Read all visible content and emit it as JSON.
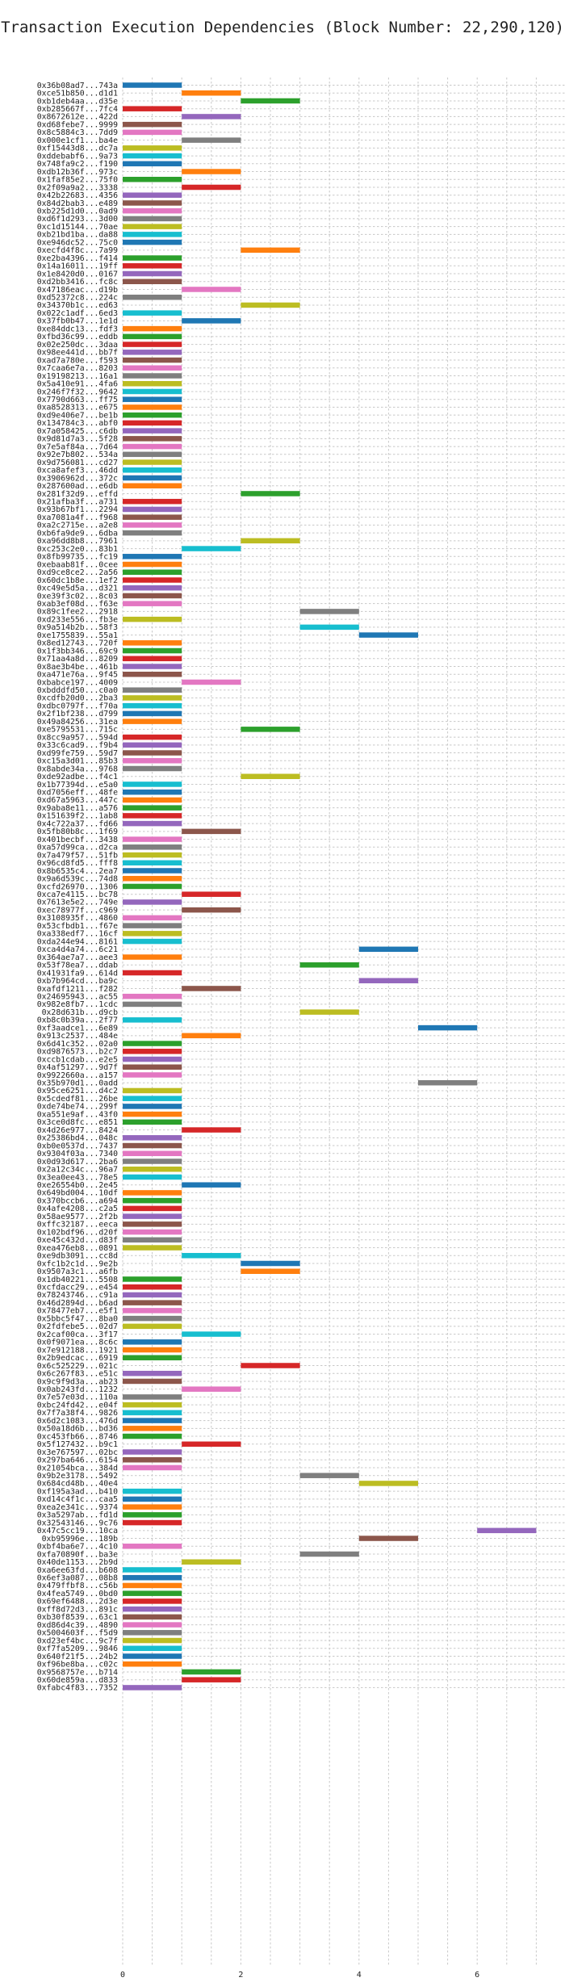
{
  "chart_data": {
    "type": "bar",
    "orientation": "horizontal-gantt",
    "title": "Transaction Execution Dependencies (Block Number: 22,290,120)",
    "xlabel": "",
    "ylabel": "",
    "xlim": [
      0,
      7.3
    ],
    "x_ticks": [
      0,
      2,
      4,
      6
    ],
    "grid": true,
    "categories": [
      "0x36b08ad7...743a",
      "0xce51b850...d1d1",
      "0xb1deb4aa...d35e",
      "0xb285667f...7fc4",
      "0x8672612e...422d",
      "0xd68febe7...9999",
      "0x8c5884c3...7dd9",
      "0x000e1cf1...ba4e",
      "0xf15443d8...dc7a",
      "0xddebabf6...9a73",
      "0x748fa9c2...f190",
      "0xdb12b36f...973c",
      "0x1faf85e2...75f0",
      "0x2f09a9a2...3338",
      "0x42b22683...4356",
      "0x84d2bab3...e489",
      "0xb225d1d0...0ad9",
      "0xd6f1d293...3d00",
      "0xc1d15144...70ae",
      "0xb21bd1ba...da88",
      "0xe946dc52...75c0",
      "0xecfd4f8c...7a99",
      "0xe2ba4396...f414",
      "0x14a16011...19ff",
      "0x1e8420d0...0167",
      "0xd2bb3416...fc8c",
      "0x47186eac...d19b",
      "0xd52372c8...224c",
      "0x34370b1c...ed63",
      "0x022c1adf...6ed3",
      "0x37fb0b47...1e1d",
      "0xe84ddc13...fdf3",
      "0xfbd36c99...eddb",
      "0x02e250dc...3daa",
      "0x98ee441d...bb7f",
      "0xad7a780e...f593",
      "0x7caa6e7a...8203",
      "0x19198213...16a1",
      "0x5a410e91...4fa6",
      "0x246f7f32...9642",
      "0x7790d663...ff75",
      "0xa8528313...e675",
      "0xd9e406e7...be1b",
      "0x134784c3...abf0",
      "0x7a058425...c6db",
      "0x9d81d7a3...5f28",
      "0x7e5af84a...7d64",
      "0x92e7b802...534a",
      "0x9d756081...cd27",
      "0xca8afef3...46dd",
      "0x3906962d...372c",
      "0x287600ad...e6db",
      "0x281f32d9...effd",
      "0x21afba3f...a731",
      "0x93b67bf1...2294",
      "0xa7081a4f...f968",
      "0xa2c2715e...a2e8",
      "0xb6fa9de9...6dba",
      "0xa96dd8b8...7961",
      "0xc253c2e0...83b1",
      "0x8fb99735...fc19",
      "0xebaab81f...0cee",
      "0xd9ce8ce2...2a56",
      "0x60dc1b8e...1ef2",
      "0xc49e5d5a...d321",
      "0xe39f3c02...8c03",
      "0xab3ef08d...f63e",
      "0x89c1fee2...2918",
      "0xd233e556...fb3e",
      "0x9a514b2b...58f3",
      "0xe1755839...55a1",
      "0x8ed12743...720f",
      "0x1f3bb346...69c9",
      "0x71aa4a8d...8209",
      "0x8ae3b4be...461b",
      "0xa471e76a...9f45",
      "0xbabce197...4009",
      "0xbdddfd50...c0a0",
      "0xcdfb20d0...2ba3",
      "0xdbc0797f...f70a",
      "0x2f1bf238...d799",
      "0x49a84256...31ea",
      "0xe5795531...715c",
      "0x8cc9a957...594d",
      "0x33c6cad9...f9b4",
      "0xd99fe759...59d7",
      "0xc15a3d01...85b3",
      "0x8abde34a...9768",
      "0xde92adbe...f4c1",
      "0x1b77394d...e5a0",
      "0xd7056eff...48fe",
      "0xd67a5963...447c",
      "0x9aba8e11...a576",
      "0x151639f2...1ab8",
      "0x4c722a37...fd66",
      "0x5fb80b8c...1f69",
      "0x401becbf...3438",
      "0xa57d99ca...d2ca",
      "0x7a479f57...51fb",
      "0x96cd8fd5...fff8",
      "0x8b6535c4...2ea7",
      "0x9a6d539c...74d8",
      "0xcfd26970...1306",
      "0xca7e4115...bc78",
      "0x7613e5e2...749e",
      "0xec78977f...c969",
      "0x3108935f...4860",
      "0x53cfbdb1...f67e",
      "0xa338edf7...16cf",
      "0xda244e94...8161",
      "0xca4d4a74...6c21",
      "0x364ae7a7...aee3",
      "0x53f78ea7...ddab",
      "0x41931fa9...614d",
      "0xb7b964cd...ba9c",
      "0xafdf1211...f282",
      "0x24695943...ac55",
      "0x982e8fb7...1cdc",
      "0x28d631b...d9cb",
      "0xb8c0b39a...2f77",
      "0xf3aadce1...6e89",
      "0x913c2537...484e",
      "0x6d41c352...02a0",
      "0xd9876573...b2c7",
      "0xccb1cdab...e2e5",
      "0x4af51297...9d7f",
      "0x9922660a...a157",
      "0x35b970d1...0add",
      "0x95ce6251...d4c2",
      "0x5cdedf81...26be",
      "0xde74be74...299f",
      "0xa551e9af...43f0",
      "0x3ce0d8fc...e851",
      "0x4d26e977...8424",
      "0x25386bd4...048c",
      "0xb0e0537d...7437",
      "0x9304f03a...7340",
      "0x0d93d617...2ba6",
      "0x2a12c34c...96a7",
      "0x3ea0ee43...78e5",
      "0xe26554b0...2e45",
      "0x649bd004...10df",
      "0x370bccb6...a694",
      "0x4afe4208...c2a5",
      "0x58ae9577...2f2b",
      "0xffc32187...eeca",
      "0x102bdf96...d20f",
      "0xe45c432d...d83f",
      "0xea476eb8...0891",
      "0xe9db3091...cc8d",
      "0xfc1b2c1d...9e2b",
      "0x9507a3c1...a6fb",
      "0x1db40221...5508",
      "0xcfdacc29...e454",
      "0x78243746...c91a",
      "0x46d2894d...b6ad",
      "0x78477eb7...e5f1",
      "0x5bbc5f47...8ba0",
      "0x2fdfebe5...02d7",
      "0x2caf00ca...3f17",
      "0x0f9071ea...8c6c",
      "0x7e912188...1921",
      "0x2b9edcac...6919",
      "0x6c525229...021c",
      "0x6c267f83...e51c",
      "0x9c9f9d3a...ab23",
      "0x0ab243fd...1232",
      "0x7e57e03d...110a",
      "0xbc24fd42...e04f",
      "0x7f7a38f4...9826",
      "0x6d2c1083...476d",
      "0x50a18d6b...bd36",
      "0xc453fb66...8746",
      "0x5f127432...b9c1",
      "0x3e767597...02bc",
      "0x297ba646...6154",
      "0x21054bca...384d",
      "0x9b2e3178...5492",
      "0x684cd48b...40e4",
      "0xf195a3ad...b410",
      "0xd14c4f1c...caa5",
      "0xea2e341c...9374",
      "0x3a5297ab...fd1d",
      "0x32543146...9c76",
      "0x47c5cc19...10ca",
      "0xb95996e...189b",
      "0xbf4ba6e7...4c10",
      "0xfa70890f...ba3e",
      "0x40de1153...2b9d",
      "0xa6ee63fd...b608",
      "0x6ef3a087...08b8",
      "0x479ffbf8...c56b",
      "0x4fea5749...0bd0",
      "0x69ef6488...2d3e",
      "0xff8d72d3...891c",
      "0xb30f8539...63c1",
      "0xd86d4c39...4890",
      "0x5004603f...f5d9",
      "0xd23ef4bc...9c7f",
      "0xf7fa5209...9846",
      "0x640f21f5...24b2",
      "0xf96be8ba...c02c",
      "0x9568757e...b714",
      "0x60de859a...d833",
      "0xfabc4f83...7352"
    ],
    "values": [
      [
        0,
        1
      ],
      [
        1,
        2
      ],
      [
        2,
        3
      ],
      [
        0,
        1
      ],
      [
        1,
        2
      ],
      [
        0,
        1
      ],
      [
        0,
        1
      ],
      [
        1,
        2
      ],
      [
        0,
        1
      ],
      [
        0,
        1
      ],
      [
        0,
        1
      ],
      [
        1,
        2
      ],
      [
        0,
        1
      ],
      [
        1,
        2
      ],
      [
        0,
        1
      ],
      [
        0,
        1
      ],
      [
        0,
        1
      ],
      [
        0,
        1
      ],
      [
        0,
        1
      ],
      [
        0,
        1
      ],
      [
        0,
        1
      ],
      [
        2,
        3
      ],
      [
        0,
        1
      ],
      [
        0,
        1
      ],
      [
        0,
        1
      ],
      [
        0,
        1
      ],
      [
        1,
        2
      ],
      [
        0,
        1
      ],
      [
        2,
        3
      ],
      [
        0,
        1
      ],
      [
        1,
        2
      ],
      [
        0,
        1
      ],
      [
        0,
        1
      ],
      [
        0,
        1
      ],
      [
        0,
        1
      ],
      [
        0,
        1
      ],
      [
        0,
        1
      ],
      [
        0,
        1
      ],
      [
        0,
        1
      ],
      [
        0,
        1
      ],
      [
        0,
        1
      ],
      [
        0,
        1
      ],
      [
        0,
        1
      ],
      [
        0,
        1
      ],
      [
        0,
        1
      ],
      [
        0,
        1
      ],
      [
        0,
        1
      ],
      [
        0,
        1
      ],
      [
        0,
        1
      ],
      [
        0,
        1
      ],
      [
        0,
        1
      ],
      [
        0,
        1
      ],
      [
        2,
        3
      ],
      [
        0,
        1
      ],
      [
        0,
        1
      ],
      [
        0,
        1
      ],
      [
        0,
        1
      ],
      [
        0,
        1
      ],
      [
        2,
        3
      ],
      [
        1,
        2
      ],
      [
        0,
        1
      ],
      [
        0,
        1
      ],
      [
        0,
        1
      ],
      [
        0,
        1
      ],
      [
        0,
        1
      ],
      [
        0,
        1
      ],
      [
        0,
        1
      ],
      [
        3,
        4
      ],
      [
        0,
        1
      ],
      [
        3,
        4
      ],
      [
        4,
        5
      ],
      [
        0,
        1
      ],
      [
        0,
        1
      ],
      [
        0,
        1
      ],
      [
        0,
        1
      ],
      [
        0,
        1
      ],
      [
        1,
        2
      ],
      [
        0,
        1
      ],
      [
        0,
        1
      ],
      [
        0,
        1
      ],
      [
        0,
        1
      ],
      [
        0,
        1
      ],
      [
        2,
        3
      ],
      [
        0,
        1
      ],
      [
        0,
        1
      ],
      [
        0,
        1
      ],
      [
        0,
        1
      ],
      [
        0,
        1
      ],
      [
        2,
        3
      ],
      [
        0,
        1
      ],
      [
        0,
        1
      ],
      [
        0,
        1
      ],
      [
        0,
        1
      ],
      [
        0,
        1
      ],
      [
        0,
        1
      ],
      [
        1,
        2
      ],
      [
        0,
        1
      ],
      [
        0,
        1
      ],
      [
        0,
        1
      ],
      [
        0,
        1
      ],
      [
        0,
        1
      ],
      [
        0,
        1
      ],
      [
        0,
        1
      ],
      [
        1,
        2
      ],
      [
        0,
        1
      ],
      [
        1,
        2
      ],
      [
        0,
        1
      ],
      [
        0,
        1
      ],
      [
        0,
        1
      ],
      [
        0,
        1
      ],
      [
        4,
        5
      ],
      [
        0,
        1
      ],
      [
        3,
        4
      ],
      [
        0,
        1
      ],
      [
        4,
        5
      ],
      [
        1,
        2
      ],
      [
        0,
        1
      ],
      [
        0,
        1
      ],
      [
        3,
        4
      ],
      [
        0,
        1
      ],
      [
        5,
        6
      ],
      [
        1,
        2
      ],
      [
        0,
        1
      ],
      [
        0,
        1
      ],
      [
        0,
        1
      ],
      [
        0,
        1
      ],
      [
        0,
        1
      ],
      [
        5,
        6
      ],
      [
        0,
        1
      ],
      [
        0,
        1
      ],
      [
        0,
        1
      ],
      [
        0,
        1
      ],
      [
        0,
        1
      ],
      [
        1,
        2
      ],
      [
        0,
        1
      ],
      [
        0,
        1
      ],
      [
        0,
        1
      ],
      [
        0,
        1
      ],
      [
        0,
        1
      ],
      [
        0,
        1
      ],
      [
        1,
        2
      ],
      [
        0,
        1
      ],
      [
        0,
        1
      ],
      [
        0,
        1
      ],
      [
        0,
        1
      ],
      [
        0,
        1
      ],
      [
        0,
        1
      ],
      [
        0,
        1
      ],
      [
        0,
        1
      ],
      [
        1,
        2
      ],
      [
        2,
        3
      ],
      [
        2,
        3
      ],
      [
        0,
        1
      ],
      [
        0,
        1
      ],
      [
        0,
        1
      ],
      [
        0,
        1
      ],
      [
        0,
        1
      ],
      [
        0,
        1
      ],
      [
        0,
        1
      ],
      [
        1,
        2
      ],
      [
        0,
        1
      ],
      [
        0,
        1
      ],
      [
        0,
        1
      ],
      [
        2,
        3
      ],
      [
        0,
        1
      ],
      [
        0,
        1
      ],
      [
        1,
        2
      ],
      [
        0,
        1
      ],
      [
        0,
        1
      ],
      [
        0,
        1
      ],
      [
        0,
        1
      ],
      [
        0,
        1
      ],
      [
        0,
        1
      ],
      [
        1,
        2
      ],
      [
        0,
        1
      ],
      [
        0,
        1
      ],
      [
        0,
        1
      ],
      [
        3,
        4
      ],
      [
        4,
        5
      ],
      [
        0,
        1
      ],
      [
        0,
        1
      ],
      [
        0,
        1
      ],
      [
        0,
        1
      ],
      [
        0,
        1
      ],
      [
        6,
        7
      ],
      [
        4,
        5
      ],
      [
        0,
        1
      ],
      [
        3,
        4
      ],
      [
        1,
        2
      ],
      [
        0,
        1
      ],
      [
        0,
        1
      ],
      [
        0,
        1
      ],
      [
        0,
        1
      ],
      [
        0,
        1
      ],
      [
        0,
        1
      ],
      [
        0,
        1
      ],
      [
        0,
        1
      ],
      [
        0,
        1
      ],
      [
        0,
        1
      ],
      [
        0,
        1
      ],
      [
        0,
        1
      ],
      [
        0,
        1
      ],
      [
        1,
        2
      ],
      [
        1,
        2
      ],
      [
        0,
        1
      ]
    ],
    "palette": [
      "#1f77b4",
      "#ff7f0e",
      "#2ca02c",
      "#d62728",
      "#9467bd",
      "#8c564b",
      "#e377c2",
      "#7f7f7f",
      "#bcbd22",
      "#17becf"
    ]
  }
}
